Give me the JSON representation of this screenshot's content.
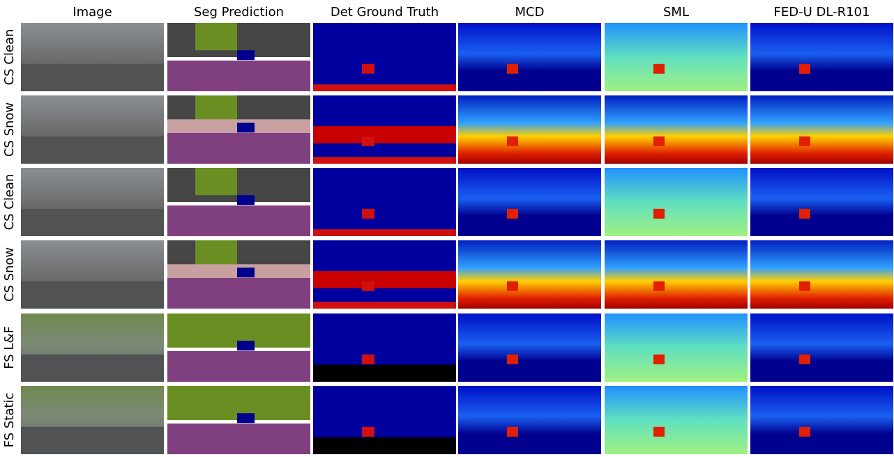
{
  "columns": [
    "Image",
    "Seg Prediction",
    "Det Ground Truth",
    "MCD",
    "SML",
    "FED-U DL-R101"
  ],
  "rows": [
    "CS Clean",
    "CS Snow",
    "CS Clean",
    "CS Snow",
    "FS L&F",
    "FS Static"
  ]
}
